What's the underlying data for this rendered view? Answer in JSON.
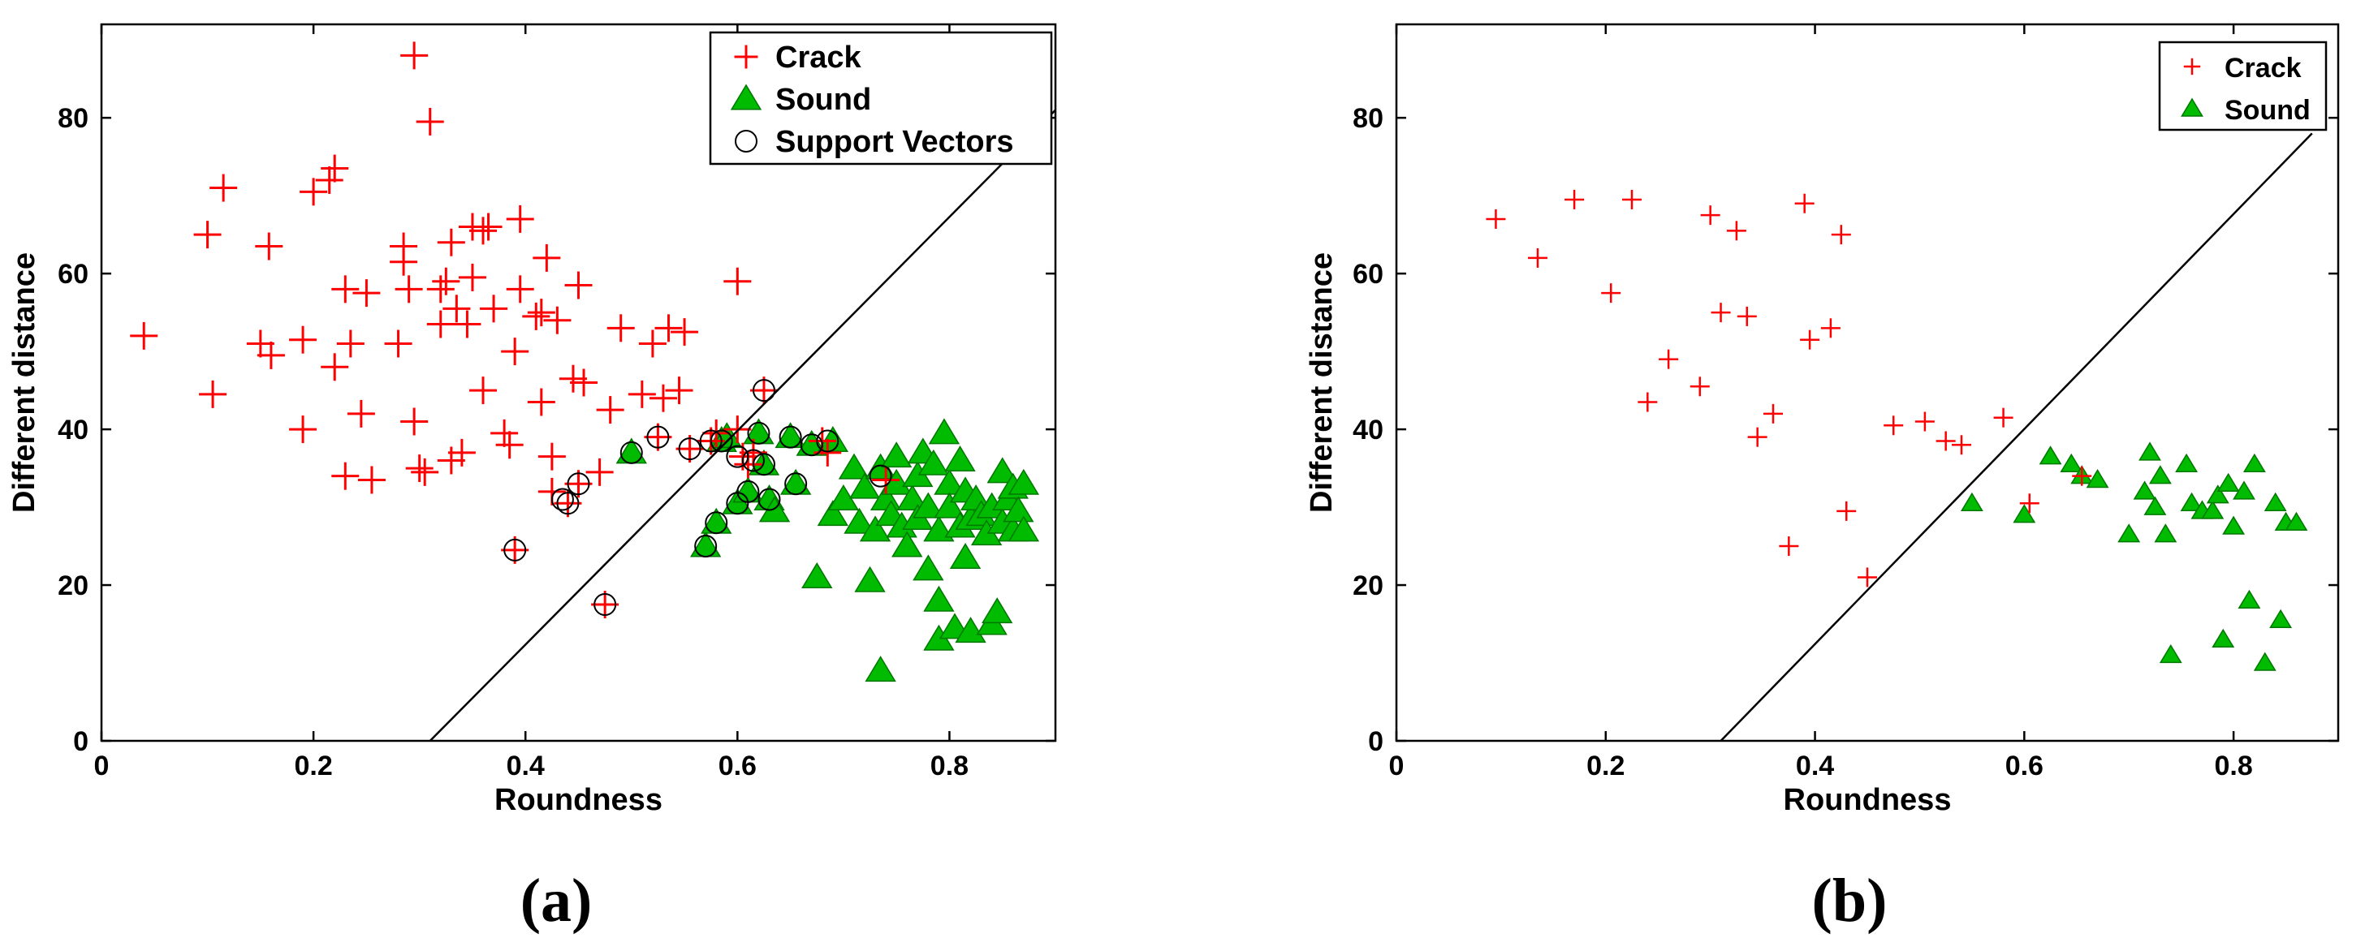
{
  "colors": {
    "crack": "#ff0000",
    "sound": "#00bb00",
    "boundary": "#000000",
    "axes": "#000000"
  },
  "chart_data": [
    {
      "type": "scatter",
      "panel_label": "(a)",
      "xlabel": "Roundness",
      "ylabel": "Different distance",
      "xlim": [
        0,
        0.9
      ],
      "ylim": [
        0,
        92
      ],
      "xticks": [
        0,
        0.2,
        0.4,
        0.6,
        0.8
      ],
      "xtick_labels": [
        "0",
        "0.2",
        "0.4",
        "0.6",
        "0.8"
      ],
      "yticks": [
        0,
        20,
        40,
        60,
        80
      ],
      "ytick_labels": [
        "0",
        "20",
        "40",
        "60",
        "80"
      ],
      "legend": {
        "position": "top-right",
        "entries": [
          "Crack",
          "Sound",
          "Support Vectors"
        ]
      },
      "boundary": {
        "x": [
          0.31,
          0.9
        ],
        "y": [
          0,
          81
        ]
      },
      "series": [
        {
          "name": "Crack",
          "marker": "plus",
          "color": "#ff0000",
          "points": [
            [
              0.04,
              52
            ],
            [
              0.1,
              65
            ],
            [
              0.105,
              44.5
            ],
            [
              0.115,
              71
            ],
            [
              0.15,
              51
            ],
            [
              0.158,
              63.5
            ],
            [
              0.16,
              49.5
            ],
            [
              0.19,
              51.5
            ],
            [
              0.19,
              40
            ],
            [
              0.2,
              70.5
            ],
            [
              0.215,
              72
            ],
            [
              0.22,
              73.5
            ],
            [
              0.22,
              48
            ],
            [
              0.23,
              58
            ],
            [
              0.23,
              34
            ],
            [
              0.235,
              51
            ],
            [
              0.245,
              42
            ],
            [
              0.25,
              57.5
            ],
            [
              0.255,
              33.5
            ],
            [
              0.28,
              51
            ],
            [
              0.285,
              61.5
            ],
            [
              0.285,
              63.5
            ],
            [
              0.29,
              58
            ],
            [
              0.295,
              41
            ],
            [
              0.295,
              88
            ],
            [
              0.3,
              35
            ],
            [
              0.305,
              34.5
            ],
            [
              0.31,
              79.5
            ],
            [
              0.32,
              58
            ],
            [
              0.32,
              53.5
            ],
            [
              0.325,
              59
            ],
            [
              0.33,
              64
            ],
            [
              0.33,
              36
            ],
            [
              0.335,
              55.5
            ],
            [
              0.34,
              37
            ],
            [
              0.345,
              53.5
            ],
            [
              0.35,
              59.5
            ],
            [
              0.35,
              66
            ],
            [
              0.36,
              65.5
            ],
            [
              0.365,
              66
            ],
            [
              0.36,
              45
            ],
            [
              0.37,
              55.5
            ],
            [
              0.38,
              39.5
            ],
            [
              0.385,
              38
            ],
            [
              0.39,
              50
            ],
            [
              0.395,
              67
            ],
            [
              0.395,
              58
            ],
            [
              0.41,
              54.5
            ],
            [
              0.415,
              43.5
            ],
            [
              0.42,
              62
            ],
            [
              0.415,
              55
            ],
            [
              0.425,
              36.5
            ],
            [
              0.425,
              32
            ],
            [
              0.43,
              54
            ],
            [
              0.44,
              30.5
            ],
            [
              0.445,
              46.5
            ],
            [
              0.45,
              58.5
            ],
            [
              0.455,
              46
            ],
            [
              0.47,
              34.5
            ],
            [
              0.48,
              42.5
            ],
            [
              0.49,
              53
            ],
            [
              0.51,
              44.5
            ],
            [
              0.52,
              51
            ],
            [
              0.525,
              39
            ],
            [
              0.53,
              44
            ],
            [
              0.535,
              53
            ],
            [
              0.545,
              45
            ],
            [
              0.55,
              52.5
            ],
            [
              0.555,
              37.5
            ],
            [
              0.575,
              38.5
            ],
            [
              0.58,
              39.5
            ],
            [
              0.6,
              59
            ],
            [
              0.6,
              40
            ],
            [
              0.605,
              36.5
            ],
            [
              0.61,
              35.5
            ],
            [
              0.615,
              37
            ],
            [
              0.625,
              45
            ],
            [
              0.68,
              38.5
            ],
            [
              0.685,
              37
            ],
            [
              0.74,
              33.5
            ],
            [
              0.39,
              24.5
            ],
            [
              0.475,
              17.5
            ],
            [
              0.45,
              33
            ]
          ]
        },
        {
          "name": "Sound",
          "marker": "triangle",
          "color": "#00bb00",
          "points": [
            [
              0.5,
              37
            ],
            [
              0.57,
              25
            ],
            [
              0.58,
              28
            ],
            [
              0.585,
              38.5
            ],
            [
              0.59,
              39
            ],
            [
              0.6,
              30.5
            ],
            [
              0.61,
              32
            ],
            [
              0.62,
              39.5
            ],
            [
              0.625,
              35.5
            ],
            [
              0.63,
              31
            ],
            [
              0.635,
              29.5
            ],
            [
              0.65,
              39
            ],
            [
              0.655,
              33
            ],
            [
              0.67,
              38
            ],
            [
              0.675,
              21
            ],
            [
              0.69,
              38.5
            ],
            [
              0.69,
              29
            ],
            [
              0.7,
              31
            ],
            [
              0.71,
              35
            ],
            [
              0.715,
              28
            ],
            [
              0.72,
              32.5
            ],
            [
              0.725,
              20.5
            ],
            [
              0.73,
              27
            ],
            [
              0.735,
              9
            ],
            [
              0.735,
              35
            ],
            [
              0.74,
              31
            ],
            [
              0.745,
              29
            ],
            [
              0.75,
              33
            ],
            [
              0.75,
              36.5
            ],
            [
              0.755,
              27.5
            ],
            [
              0.76,
              25
            ],
            [
              0.765,
              31
            ],
            [
              0.77,
              34
            ],
            [
              0.77,
              28.5
            ],
            [
              0.775,
              37
            ],
            [
              0.78,
              30
            ],
            [
              0.78,
              22
            ],
            [
              0.785,
              35.5
            ],
            [
              0.79,
              27
            ],
            [
              0.79,
              18
            ],
            [
              0.79,
              13
            ],
            [
              0.795,
              39.5
            ],
            [
              0.8,
              33
            ],
            [
              0.8,
              30
            ],
            [
              0.805,
              14.5
            ],
            [
              0.81,
              27.5
            ],
            [
              0.81,
              36
            ],
            [
              0.815,
              32
            ],
            [
              0.815,
              23.5
            ],
            [
              0.82,
              28.5
            ],
            [
              0.82,
              14
            ],
            [
              0.825,
              31
            ],
            [
              0.83,
              29
            ],
            [
              0.835,
              26.5
            ],
            [
              0.84,
              15
            ],
            [
              0.84,
              30
            ],
            [
              0.845,
              16.5
            ],
            [
              0.85,
              34.5
            ],
            [
              0.85,
              28
            ],
            [
              0.855,
              31
            ],
            [
              0.86,
              27
            ],
            [
              0.86,
              32.5
            ],
            [
              0.865,
              29.5
            ],
            [
              0.87,
              27
            ],
            [
              0.87,
              33
            ]
          ]
        },
        {
          "name": "Support Vectors",
          "marker": "circle",
          "color": "#000000",
          "points": [
            [
              0.39,
              24.5
            ],
            [
              0.435,
              31
            ],
            [
              0.44,
              30.5
            ],
            [
              0.45,
              33
            ],
            [
              0.475,
              17.5
            ],
            [
              0.5,
              37
            ],
            [
              0.525,
              39
            ],
            [
              0.555,
              37.5
            ],
            [
              0.57,
              25
            ],
            [
              0.575,
              38.5
            ],
            [
              0.58,
              28
            ],
            [
              0.585,
              38.5
            ],
            [
              0.6,
              30.5
            ],
            [
              0.6,
              36.5
            ],
            [
              0.61,
              32
            ],
            [
              0.615,
              36
            ],
            [
              0.62,
              39.5
            ],
            [
              0.625,
              45
            ],
            [
              0.625,
              35.5
            ],
            [
              0.63,
              31
            ],
            [
              0.65,
              39
            ],
            [
              0.655,
              33
            ],
            [
              0.67,
              38
            ],
            [
              0.685,
              38.5
            ],
            [
              0.735,
              34
            ]
          ]
        }
      ]
    },
    {
      "type": "scatter",
      "panel_label": "(b)",
      "xlabel": "Roundness",
      "ylabel": "Different distance",
      "xlim": [
        0,
        0.9
      ],
      "ylim": [
        0,
        92
      ],
      "xticks": [
        0,
        0.2,
        0.4,
        0.6,
        0.8
      ],
      "xtick_labels": [
        "0",
        "0.2",
        "0.4",
        "0.6",
        "0.8"
      ],
      "yticks": [
        0,
        20,
        40,
        60,
        80
      ],
      "ytick_labels": [
        "0",
        "20",
        "40",
        "60",
        "80"
      ],
      "legend": {
        "position": "top-right",
        "entries": [
          "Crack",
          "Sound"
        ]
      },
      "boundary": {
        "x": [
          0.31,
          0.875
        ],
        "y": [
          0,
          78
        ]
      },
      "series": [
        {
          "name": "Crack",
          "marker": "plus",
          "color": "#ff0000",
          "points": [
            [
              0.095,
              67
            ],
            [
              0.135,
              62
            ],
            [
              0.17,
              69.5
            ],
            [
              0.205,
              57.5
            ],
            [
              0.225,
              69.5
            ],
            [
              0.24,
              43.5
            ],
            [
              0.26,
              49
            ],
            [
              0.29,
              45.5
            ],
            [
              0.3,
              67.5
            ],
            [
              0.31,
              55
            ],
            [
              0.325,
              65.5
            ],
            [
              0.335,
              54.5
            ],
            [
              0.345,
              39
            ],
            [
              0.36,
              42
            ],
            [
              0.375,
              25
            ],
            [
              0.39,
              69
            ],
            [
              0.395,
              51.5
            ],
            [
              0.415,
              53
            ],
            [
              0.425,
              65
            ],
            [
              0.43,
              29.5
            ],
            [
              0.45,
              21
            ],
            [
              0.475,
              40.5
            ],
            [
              0.505,
              41
            ],
            [
              0.525,
              38.5
            ],
            [
              0.54,
              38
            ],
            [
              0.58,
              41.5
            ],
            [
              0.605,
              30.5
            ],
            [
              0.655,
              34
            ]
          ]
        },
        {
          "name": "Sound",
          "marker": "triangle",
          "color": "#00bb00",
          "points": [
            [
              0.55,
              30.5
            ],
            [
              0.6,
              29
            ],
            [
              0.625,
              36.5
            ],
            [
              0.645,
              35.5
            ],
            [
              0.655,
              34
            ],
            [
              0.67,
              33.5
            ],
            [
              0.7,
              26.5
            ],
            [
              0.715,
              32
            ],
            [
              0.72,
              37
            ],
            [
              0.725,
              30
            ],
            [
              0.73,
              34
            ],
            [
              0.735,
              26.5
            ],
            [
              0.74,
              11
            ],
            [
              0.755,
              35.5
            ],
            [
              0.76,
              30.5
            ],
            [
              0.77,
              29.5
            ],
            [
              0.78,
              29.5
            ],
            [
              0.785,
              31.5
            ],
            [
              0.79,
              13
            ],
            [
              0.795,
              33
            ],
            [
              0.8,
              27.5
            ],
            [
              0.81,
              32
            ],
            [
              0.815,
              18
            ],
            [
              0.82,
              35.5
            ],
            [
              0.83,
              10
            ],
            [
              0.84,
              30.5
            ],
            [
              0.845,
              15.5
            ],
            [
              0.85,
              28
            ],
            [
              0.86,
              28
            ]
          ]
        }
      ]
    }
  ]
}
